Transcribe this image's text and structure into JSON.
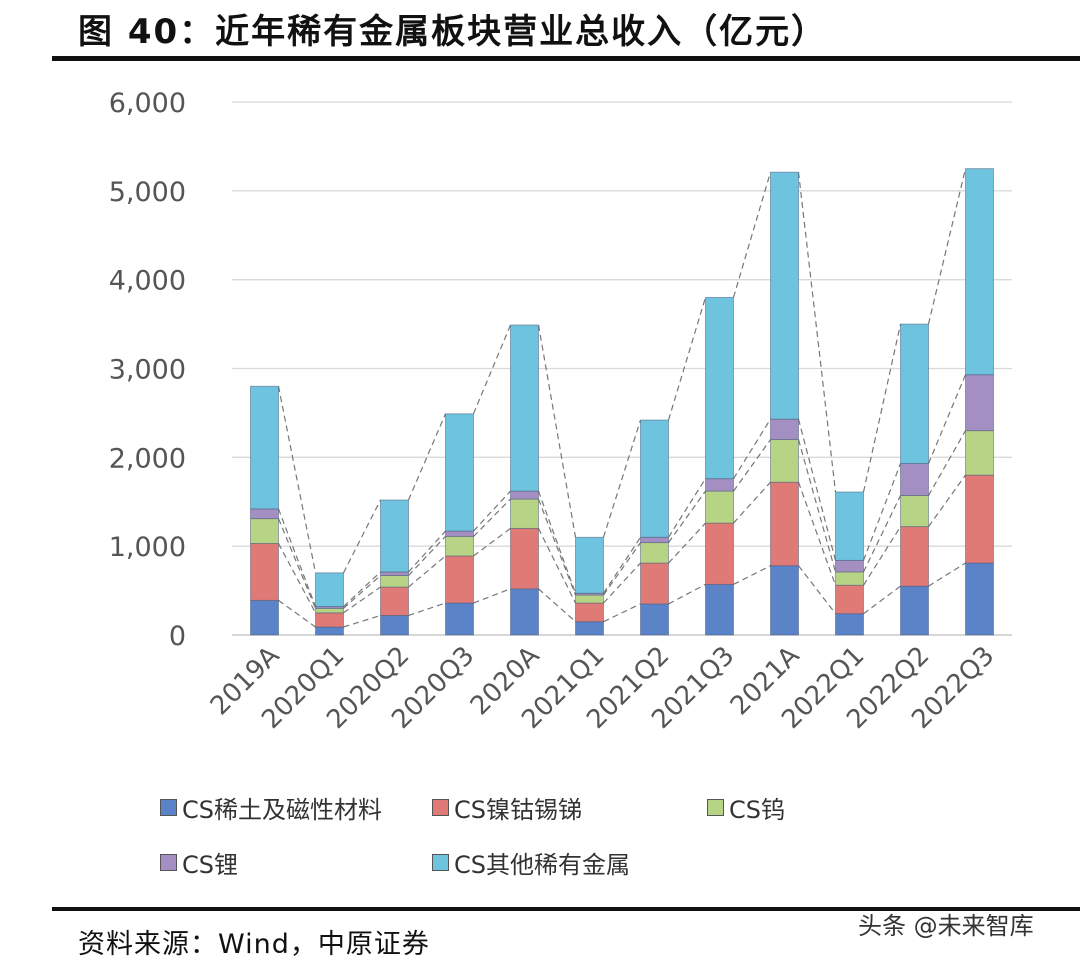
{
  "header": {
    "title": "图 40：近年稀有金属板块营业总收入（亿元）"
  },
  "footer": {
    "source": "资料来源：Wind，中原证券",
    "watermark": "头条 @未来智库"
  },
  "colors": {
    "rare_earth": "#5B83C8",
    "nickel_cobalt": "#E07A76",
    "tungsten": "#B7D486",
    "lithium": "#A48FC2",
    "other": "#6EC3DE"
  },
  "chart_data": {
    "type": "bar",
    "stacked": true,
    "title": "近年稀有金属板块营业总收入（亿元）",
    "xlabel": "",
    "ylabel": "",
    "ylim": [
      0,
      6000
    ],
    "yticks": [
      0,
      1000,
      2000,
      3000,
      4000,
      5000,
      6000
    ],
    "ytick_labels": [
      "0",
      "1,000",
      "2,000",
      "3,000",
      "4,000",
      "5,000",
      "6,000"
    ],
    "grid": true,
    "connector_lines": "dashed",
    "categories": [
      "2019A",
      "2020Q1",
      "2020Q2",
      "2020Q3",
      "2020A",
      "2021Q1",
      "2021Q2",
      "2021Q3",
      "2021A",
      "2022Q1",
      "2022Q2",
      "2022Q3"
    ],
    "series": [
      {
        "name": "CS稀土及磁性材料",
        "color_key": "rare_earth",
        "values": [
          390,
          90,
          220,
          360,
          520,
          150,
          350,
          570,
          780,
          240,
          550,
          810
        ]
      },
      {
        "name": "CS镍钴锡锑",
        "color_key": "nickel_cobalt",
        "values": [
          640,
          160,
          320,
          530,
          680,
          210,
          460,
          690,
          940,
          320,
          670,
          990
        ]
      },
      {
        "name": "CS钨",
        "color_key": "tungsten",
        "values": [
          280,
          50,
          130,
          220,
          330,
          90,
          230,
          360,
          480,
          150,
          350,
          500
        ]
      },
      {
        "name": "CS锂",
        "color_key": "lithium",
        "values": [
          110,
          20,
          40,
          60,
          90,
          20,
          60,
          140,
          230,
          130,
          360,
          630
        ]
      },
      {
        "name": "CS其他稀有金属",
        "color_key": "other",
        "values": [
          1380,
          380,
          810,
          1320,
          1870,
          630,
          1320,
          2040,
          2780,
          770,
          1570,
          2320
        ]
      }
    ],
    "legend_position": "bottom"
  }
}
